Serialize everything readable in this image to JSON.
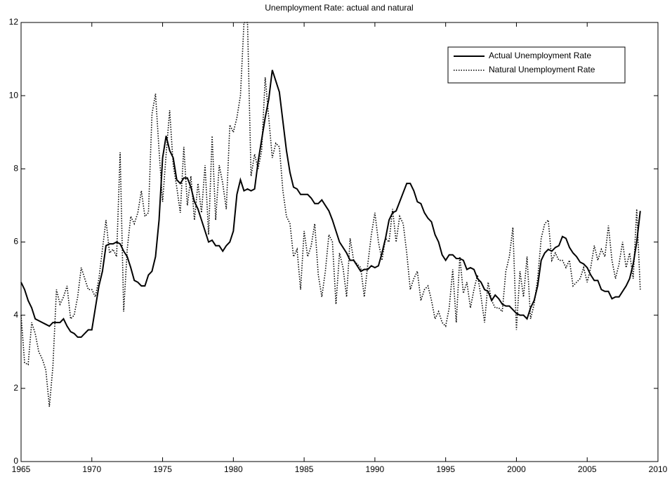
{
  "chart_data": {
    "type": "line",
    "title": "Unemployment Rate: actual and natural",
    "xlim": [
      1965,
      2010
    ],
    "xticks": [
      1965,
      1970,
      1975,
      1980,
      1985,
      1990,
      1995,
      2000,
      2005,
      2010
    ],
    "ylim": [
      0,
      12
    ],
    "yticks": [
      0,
      2,
      4,
      6,
      8,
      10,
      12
    ],
    "grid": false,
    "legend": "upper right",
    "x": [
      1965,
      1965.25,
      1965.5,
      1965.75,
      1966,
      1966.25,
      1966.5,
      1966.75,
      1967,
      1967.25,
      1967.5,
      1967.75,
      1968,
      1968.25,
      1968.5,
      1968.75,
      1969,
      1969.25,
      1969.5,
      1969.75,
      1970,
      1970.25,
      1970.5,
      1970.75,
      1971,
      1971.25,
      1971.5,
      1971.75,
      1972,
      1972.25,
      1972.5,
      1972.75,
      1973,
      1973.25,
      1973.5,
      1973.75,
      1974,
      1974.25,
      1974.5,
      1974.75,
      1975,
      1975.25,
      1975.5,
      1975.75,
      1976,
      1976.25,
      1976.5,
      1976.75,
      1977,
      1977.25,
      1977.5,
      1977.75,
      1978,
      1978.25,
      1978.5,
      1978.75,
      1979,
      1979.25,
      1979.5,
      1979.75,
      1980,
      1980.25,
      1980.5,
      1980.75,
      1981,
      1981.25,
      1981.5,
      1981.75,
      1982,
      1982.25,
      1982.5,
      1982.75,
      1983,
      1983.25,
      1983.5,
      1983.75,
      1984,
      1984.25,
      1984.5,
      1984.75,
      1985,
      1985.25,
      1985.5,
      1985.75,
      1986,
      1986.25,
      1986.5,
      1986.75,
      1987,
      1987.25,
      1987.5,
      1987.75,
      1988,
      1988.25,
      1988.5,
      1988.75,
      1989,
      1989.25,
      1989.5,
      1989.75,
      1990,
      1990.25,
      1990.5,
      1990.75,
      1991,
      1991.25,
      1991.5,
      1991.75,
      1992,
      1992.25,
      1992.5,
      1992.75,
      1993,
      1993.25,
      1993.5,
      1993.75,
      1994,
      1994.25,
      1994.5,
      1994.75,
      1995,
      1995.25,
      1995.5,
      1995.75,
      1996,
      1996.25,
      1996.5,
      1996.75,
      1997,
      1997.25,
      1997.5,
      1997.75,
      1998,
      1998.25,
      1998.5,
      1998.75,
      1999,
      1999.25,
      1999.5,
      1999.75,
      2000,
      2000.25,
      2000.5,
      2000.75,
      2001,
      2001.25,
      2001.5,
      2001.75,
      2002,
      2002.25,
      2002.5,
      2002.75,
      2003,
      2003.25,
      2003.5,
      2003.75,
      2004,
      2004.25,
      2004.5,
      2004.75,
      2005,
      2005.25,
      2005.5,
      2005.75,
      2006,
      2006.25,
      2006.5,
      2006.75,
      2007,
      2007.25,
      2007.5,
      2007.75,
      2008,
      2008.25,
      2008.5,
      2008.75
    ],
    "series": [
      {
        "name": "Actual Unemployment Rate",
        "color": "#000000",
        "style": "solid",
        "values": [
          4.9,
          4.7,
          4.4,
          4.2,
          3.9,
          3.85,
          3.8,
          3.75,
          3.7,
          3.8,
          3.8,
          3.8,
          3.9,
          3.7,
          3.55,
          3.5,
          3.4,
          3.4,
          3.5,
          3.6,
          3.6,
          4.2,
          4.8,
          5.2,
          5.9,
          5.95,
          5.95,
          6.0,
          5.95,
          5.75,
          5.6,
          5.3,
          4.95,
          4.9,
          4.8,
          4.8,
          5.1,
          5.2,
          5.6,
          6.6,
          8.3,
          8.9,
          8.5,
          8.3,
          7.7,
          7.6,
          7.75,
          7.75,
          7.5,
          7.1,
          6.9,
          6.6,
          6.3,
          6.0,
          6.05,
          5.9,
          5.9,
          5.75,
          5.9,
          6.0,
          6.3,
          7.3,
          7.7,
          7.4,
          7.45,
          7.4,
          7.45,
          8.2,
          8.8,
          9.4,
          9.9,
          10.7,
          10.4,
          10.1,
          9.3,
          8.5,
          7.9,
          7.5,
          7.45,
          7.3,
          7.3,
          7.3,
          7.2,
          7.05,
          7.05,
          7.15,
          7.0,
          6.85,
          6.6,
          6.3,
          6.0,
          5.85,
          5.7,
          5.5,
          5.5,
          5.35,
          5.2,
          5.25,
          5.25,
          5.35,
          5.3,
          5.35,
          5.7,
          6.1,
          6.6,
          6.8,
          6.85,
          7.1,
          7.35,
          7.6,
          7.6,
          7.4,
          7.1,
          7.05,
          6.8,
          6.65,
          6.55,
          6.2,
          6.0,
          5.65,
          5.5,
          5.65,
          5.65,
          5.55,
          5.55,
          5.5,
          5.25,
          5.3,
          5.25,
          5.0,
          4.9,
          4.7,
          4.65,
          4.4,
          4.55,
          4.45,
          4.3,
          4.25,
          4.25,
          4.15,
          4.05,
          4.0,
          4.0,
          3.9,
          4.2,
          4.4,
          4.8,
          5.5,
          5.7,
          5.8,
          5.75,
          5.85,
          5.9,
          6.15,
          6.1,
          5.85,
          5.7,
          5.6,
          5.45,
          5.4,
          5.3,
          5.1,
          4.95,
          4.95,
          4.7,
          4.65,
          4.65,
          4.45,
          4.5,
          4.5,
          4.65,
          4.8,
          5.0,
          5.4,
          6.0,
          6.85
        ]
      },
      {
        "name": "Natural Unemployment Rate",
        "color": "#000000",
        "style": "dotted",
        "values": [
          4.0,
          2.7,
          2.65,
          3.8,
          3.5,
          3.0,
          2.8,
          2.5,
          1.5,
          2.6,
          4.7,
          4.3,
          4.5,
          4.8,
          3.9,
          4.0,
          4.5,
          5.3,
          5.0,
          4.7,
          4.7,
          4.5,
          5.0,
          5.8,
          6.6,
          5.7,
          5.8,
          5.6,
          8.45,
          4.1,
          5.8,
          6.7,
          6.5,
          6.8,
          7.4,
          6.7,
          6.8,
          9.5,
          10.05,
          8.5,
          7.1,
          8.4,
          9.6,
          8.1,
          7.5,
          6.8,
          8.6,
          7.0,
          7.8,
          6.6,
          7.6,
          6.8,
          8.1,
          6.2,
          8.9,
          6.6,
          8.1,
          7.6,
          6.9,
          9.2,
          9.0,
          9.4,
          10.0,
          12.0,
          12.0,
          7.8,
          8.4,
          8.0,
          8.5,
          10.5,
          9.4,
          8.3,
          8.7,
          8.6,
          7.4,
          6.7,
          6.5,
          5.6,
          5.8,
          4.7,
          6.3,
          5.6,
          5.9,
          6.5,
          5.1,
          4.5,
          5.2,
          6.2,
          6.0,
          4.3,
          5.7,
          5.3,
          4.5,
          6.1,
          5.5,
          5.4,
          5.3,
          4.5,
          5.4,
          6.2,
          6.8,
          6.0,
          5.5,
          6.1,
          6.0,
          6.9,
          6.0,
          6.7,
          6.5,
          5.7,
          4.7,
          5.0,
          5.2,
          4.4,
          4.7,
          4.8,
          4.4,
          3.9,
          4.1,
          3.8,
          3.7,
          4.2,
          5.25,
          3.8,
          5.6,
          4.6,
          4.9,
          4.2,
          4.7,
          5.1,
          4.5,
          3.8,
          4.9,
          4.4,
          4.2,
          4.2,
          4.1,
          5.2,
          5.6,
          6.4,
          3.6,
          5.2,
          4.5,
          5.6,
          3.9,
          4.3,
          5.0,
          6.1,
          6.5,
          6.6,
          5.5,
          5.7,
          5.5,
          5.5,
          5.3,
          5.5,
          4.8,
          4.9,
          5.0,
          5.3,
          4.9,
          5.3,
          5.9,
          5.5,
          5.8,
          5.6,
          6.45,
          5.5,
          5.0,
          5.4,
          6.0,
          5.3,
          5.7,
          5.0,
          6.9,
          4.7
        ]
      }
    ]
  }
}
